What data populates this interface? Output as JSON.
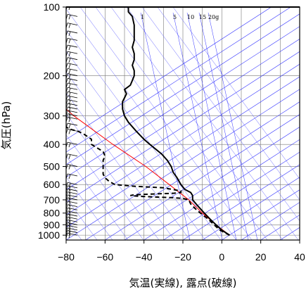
{
  "chart_data": {
    "type": "line",
    "subtype": "skew-t thermodynamic diagram",
    "xlabel": "気温(実線), 露点(破線)",
    "ylabel": "気圧(hPa)",
    "xlim": [
      -80,
      40
    ],
    "ylim": [
      1050,
      100
    ],
    "y_scale": "log",
    "x_ticks": [
      -80,
      -60,
      -40,
      -20,
      0,
      20,
      40
    ],
    "x_tick_labels": [
      "−80",
      "−60",
      "−40",
      "−20",
      "0",
      "20",
      "40"
    ],
    "y_ticks": [
      100,
      200,
      300,
      400,
      500,
      600,
      700,
      800,
      900,
      1000
    ],
    "grid": true,
    "mixing_ratio_labels": [
      "1",
      "5",
      "10",
      "15",
      "20g"
    ],
    "series": [
      {
        "style": "solid",
        "color": "#000000",
        "points": [
          [
            1000,
            4
          ],
          [
            950,
            0
          ],
          [
            900,
            -3
          ],
          [
            850,
            -6
          ],
          [
            800,
            -9
          ],
          [
            750,
            -12
          ],
          [
            700,
            -15
          ],
          [
            670,
            -15
          ],
          [
            650,
            -16
          ],
          [
            630,
            -19
          ],
          [
            600,
            -21
          ],
          [
            580,
            -22
          ],
          [
            560,
            -23
          ],
          [
            530,
            -25
          ],
          [
            500,
            -26
          ],
          [
            470,
            -28
          ],
          [
            440,
            -31
          ],
          [
            400,
            -37
          ],
          [
            380,
            -40
          ],
          [
            350,
            -44
          ],
          [
            320,
            -48
          ],
          [
            300,
            -50
          ],
          [
            280,
            -51
          ],
          [
            260,
            -51
          ],
          [
            250,
            -50
          ],
          [
            240,
            -49
          ],
          [
            230,
            -50
          ],
          [
            220,
            -47
          ],
          [
            210,
            -46
          ],
          [
            200,
            -45
          ],
          [
            190,
            -45
          ],
          [
            180,
            -46
          ],
          [
            170,
            -45
          ],
          [
            160,
            -45
          ],
          [
            150,
            -46
          ],
          [
            140,
            -45
          ],
          [
            130,
            -45
          ],
          [
            120,
            -45
          ],
          [
            110,
            -46
          ],
          [
            105,
            -48
          ],
          [
            100,
            -48
          ]
        ]
      },
      {
        "style": "dashed",
        "color": "#000000",
        "points": [
          [
            1000,
            4
          ],
          [
            950,
            -1
          ],
          [
            900,
            -4
          ],
          [
            850,
            -7
          ],
          [
            800,
            -11
          ],
          [
            760,
            -14
          ],
          [
            730,
            -16
          ],
          [
            700,
            -17
          ],
          [
            690,
            -20
          ],
          [
            685,
            -25
          ],
          [
            680,
            -35
          ],
          [
            675,
            -43
          ],
          [
            670,
            -47
          ],
          [
            665,
            -45
          ],
          [
            660,
            -35
          ],
          [
            655,
            -25
          ],
          [
            650,
            -21
          ],
          [
            640,
            -21
          ],
          [
            620,
            -30
          ],
          [
            610,
            -45
          ],
          [
            600,
            -55
          ],
          [
            580,
            -58
          ],
          [
            560,
            -60
          ],
          [
            540,
            -61
          ],
          [
            520,
            -61
          ],
          [
            500,
            -61
          ],
          [
            470,
            -61
          ],
          [
            450,
            -60
          ],
          [
            430,
            -61
          ],
          [
            410,
            -65
          ],
          [
            400,
            -67
          ],
          [
            380,
            -67
          ],
          [
            360,
            -71
          ],
          [
            350,
            -74
          ],
          [
            345,
            -77
          ],
          [
            340,
            -79
          ],
          [
            335,
            -80
          ]
        ]
      },
      {
        "style": "solid",
        "color": "#ff0000",
        "points": [
          [
            1000,
            4
          ],
          [
            900,
            -3
          ],
          [
            800,
            -10
          ],
          [
            700,
            -17
          ],
          [
            600,
            -27
          ],
          [
            500,
            -39
          ],
          [
            400,
            -56
          ],
          [
            300,
            -76
          ],
          [
            280,
            -80
          ]
        ]
      }
    ],
    "wind_barbs": {
      "present": true,
      "pressure_levels": [
        1000,
        975,
        950,
        925,
        900,
        875,
        850,
        825,
        800,
        775,
        750,
        725,
        700,
        680,
        660,
        640,
        620,
        600,
        550,
        500,
        450,
        400,
        350,
        330,
        310,
        300,
        290,
        280,
        270,
        260,
        250,
        240,
        230,
        220,
        210,
        200,
        190,
        180,
        170,
        160,
        150,
        140,
        130,
        120,
        110,
        100
      ]
    }
  },
  "colors": {
    "isotherm_blue": "#3333ff",
    "moist_adiabat_blue": "#6666ff",
    "grid": "#555555",
    "parcel_red": "#ff0000",
    "profile_black": "#000000"
  }
}
